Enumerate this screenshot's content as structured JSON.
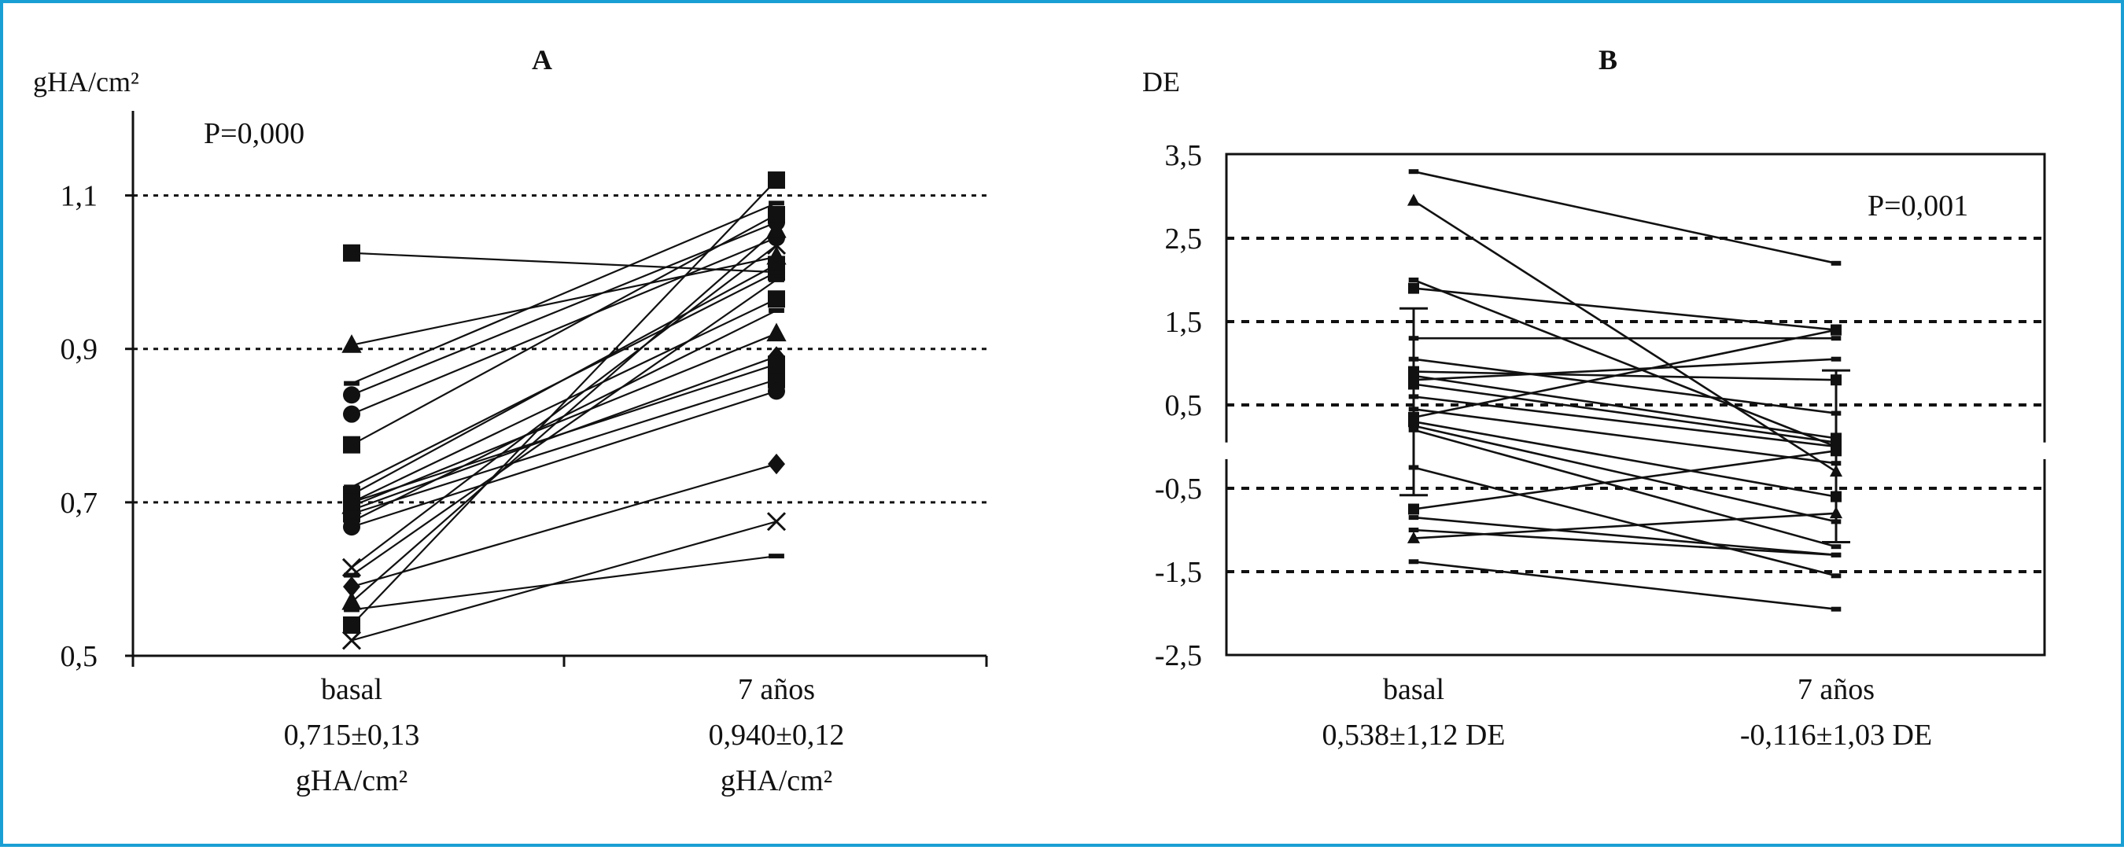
{
  "border_color": "#1a9fd4",
  "chart_data": [
    {
      "type": "line",
      "title": "A",
      "ylabel": "gHA/cm²",
      "annotation": "P=0,000",
      "ylim": [
        0.5,
        1.2
      ],
      "yticks": [
        0.5,
        0.7,
        0.9,
        1.1
      ],
      "ytick_labels": [
        "0,5",
        "0,7",
        "0,9",
        "1,1"
      ],
      "gridlines": [
        0.7,
        0.9,
        1.1
      ],
      "grid": "dotted",
      "categories": [
        {
          "name": "basal",
          "lines": [
            "basal",
            "0,715±0,13",
            "gHA/cm²"
          ]
        },
        {
          "name": "7 años",
          "lines": [
            "7 años",
            "0,940±0,12",
            "gHA/cm²"
          ]
        }
      ],
      "series": [
        {
          "values": [
            1.025,
            1.0
          ],
          "marker": "square"
        },
        {
          "values": [
            0.905,
            1.02
          ],
          "marker": "triangle"
        },
        {
          "values": [
            0.855,
            1.09
          ],
          "marker": "dash"
        },
        {
          "values": [
            0.84,
            1.065
          ],
          "marker": "circle"
        },
        {
          "values": [
            0.815,
            1.045
          ],
          "marker": "circle"
        },
        {
          "values": [
            0.775,
            1.075
          ],
          "marker": "square"
        },
        {
          "values": [
            0.71,
            1.01
          ],
          "marker": "square"
        },
        {
          "values": [
            0.7,
            0.965
          ],
          "marker": "square"
        },
        {
          "values": [
            0.695,
            0.92
          ],
          "marker": "triangle"
        },
        {
          "values": [
            0.69,
            0.89
          ],
          "marker": "diamond"
        },
        {
          "values": [
            0.685,
            0.86
          ],
          "marker": "square"
        },
        {
          "values": [
            0.675,
            0.95
          ],
          "marker": "dash"
        },
        {
          "values": [
            0.668,
            0.845
          ],
          "marker": "circle"
        },
        {
          "values": [
            0.615,
            1.035
          ],
          "marker": "cross"
        },
        {
          "values": [
            0.605,
            0.99
          ],
          "marker": "dash"
        },
        {
          "values": [
            0.59,
            0.75
          ],
          "marker": "diamond"
        },
        {
          "values": [
            0.57,
            1.055
          ],
          "marker": "triangle"
        },
        {
          "values": [
            0.54,
            1.12
          ],
          "marker": "square"
        },
        {
          "values": [
            0.52,
            0.675
          ],
          "marker": "cross"
        },
        {
          "values": [
            0.56,
            0.63
          ],
          "marker": "dash"
        },
        {
          "values": [
            0.7,
            0.88
          ],
          "marker": "square"
        },
        {
          "values": [
            0.72,
            1.0
          ],
          "marker": "dash"
        }
      ]
    },
    {
      "type": "line",
      "title": "B",
      "ylabel": "DE",
      "annotation": "P=0,001",
      "ylim": [
        -2.5,
        3.5
      ],
      "yticks": [
        3.5,
        2.5,
        1.5,
        0.5,
        -0.5,
        -1.5,
        -2.5
      ],
      "ytick_labels": [
        "3,5",
        "2,5",
        "1,5",
        "0,5",
        "-0,5",
        "-1,5",
        "-2,5"
      ],
      "gridlines": [
        2.5,
        1.5,
        0.5,
        -0.5,
        -1.5
      ],
      "grid": "dashed",
      "error_bars": [
        {
          "category": 0,
          "mean": 0.538,
          "sd": 1.12
        },
        {
          "category": 1,
          "mean": -0.116,
          "sd": 1.03
        }
      ],
      "categories": [
        {
          "name": "basal",
          "lines": [
            "basal",
            "0,538±1,12 DE"
          ]
        },
        {
          "name": "7 años",
          "lines": [
            "7 años",
            "-0,116±1,03 DE"
          ]
        }
      ],
      "series": [
        {
          "values": [
            3.3,
            2.2
          ],
          "marker": "dash"
        },
        {
          "values": [
            2.95,
            -0.3
          ],
          "marker": "triangle"
        },
        {
          "values": [
            2.0,
            0.0
          ],
          "marker": "dash"
        },
        {
          "values": [
            1.9,
            1.4
          ],
          "marker": "square"
        },
        {
          "values": [
            1.3,
            1.3
          ],
          "marker": "dash"
        },
        {
          "values": [
            1.05,
            0.4
          ],
          "marker": "dash"
        },
        {
          "values": [
            0.9,
            0.8
          ],
          "marker": "square"
        },
        {
          "values": [
            0.85,
            0.1
          ],
          "marker": "square"
        },
        {
          "values": [
            0.8,
            1.05
          ],
          "marker": "dash"
        },
        {
          "values": [
            0.75,
            0.05
          ],
          "marker": "square"
        },
        {
          "values": [
            0.6,
            0.0
          ],
          "marker": "dash"
        },
        {
          "values": [
            0.45,
            -0.2
          ],
          "marker": "dash"
        },
        {
          "values": [
            0.35,
            1.4
          ],
          "marker": "square"
        },
        {
          "values": [
            0.3,
            -0.6
          ],
          "marker": "square"
        },
        {
          "values": [
            0.25,
            -0.9
          ],
          "marker": "dash"
        },
        {
          "values": [
            0.2,
            -1.2
          ],
          "marker": "dash"
        },
        {
          "values": [
            -0.25,
            -1.55
          ],
          "marker": "dash"
        },
        {
          "values": [
            -0.75,
            -0.05
          ],
          "marker": "square"
        },
        {
          "values": [
            -0.85,
            -1.3
          ],
          "marker": "dash"
        },
        {
          "values": [
            -1.0,
            -1.3
          ],
          "marker": "dash"
        },
        {
          "values": [
            -1.1,
            -0.8
          ],
          "marker": "triangle"
        },
        {
          "values": [
            -1.38,
            -1.95
          ],
          "marker": "dash"
        }
      ]
    }
  ]
}
